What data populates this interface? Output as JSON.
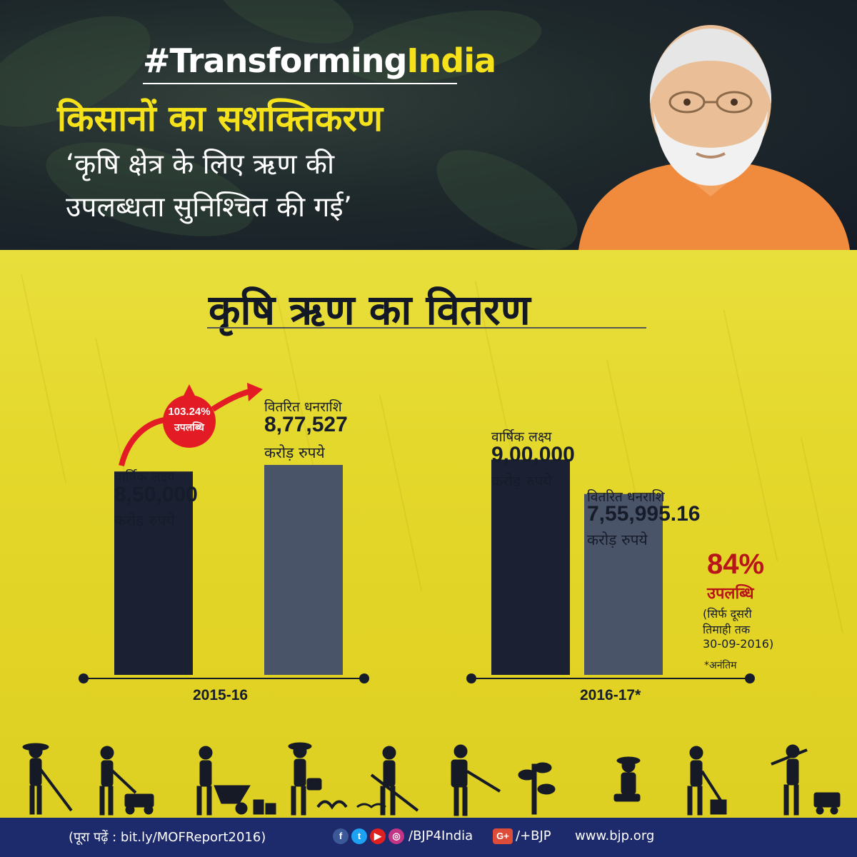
{
  "header": {
    "hashtag_part1": "#Transforming",
    "hashtag_part2": "India",
    "headline": "किसानों का सशक्तिकरण",
    "quote_line1": "‘कृषि क्षेत्र के लिए ऋण की",
    "quote_line2": "उपलब्धता सुनिश्चित की गई’"
  },
  "section_title": "कृषि ऋण का वितरण",
  "colors": {
    "accent_yellow": "#f6e21a",
    "dark_bar": "#1b2032",
    "light_bar": "#4a5468",
    "achievement_red": "#b8141a",
    "footer_blue": "#1d2a6b"
  },
  "chart_data": {
    "type": "bar",
    "title": "कृषि ऋण का वितरण",
    "unit": "करोड़ रुपये",
    "categories": [
      "2015-16",
      "2016-17*"
    ],
    "series": [
      {
        "name": "वार्षिक लक्ष्य",
        "values": [
          850000,
          900000
        ],
        "display": [
          "8,50,000",
          "9,00,000"
        ]
      },
      {
        "name": "वितरित धनराशि",
        "values": [
          877527,
          755995.16
        ],
        "display": [
          "8,77,527",
          "7,55,995.16"
        ]
      }
    ],
    "annotations": [
      {
        "category": "2015-16",
        "value": "103.24%",
        "label": "उपलब्धि"
      },
      {
        "category": "2016-17*",
        "value": "84%",
        "label": "उपलब्धि",
        "note": [
          "(सिर्फ दूसरी",
          "तिमाही तक",
          "30-09-2016)"
        ],
        "footnote": "*अनंतिम"
      }
    ]
  },
  "footer": {
    "read_more": "(पूरा पढ़ें : bit.ly/MOFReport2016)",
    "social_handle": "/BJP4India",
    "gplus_handle": "/+BJP",
    "website": "www.bjp.org",
    "icons": [
      "facebook-icon",
      "twitter-icon",
      "youtube-icon",
      "instagram-icon",
      "google-plus-icon"
    ]
  }
}
